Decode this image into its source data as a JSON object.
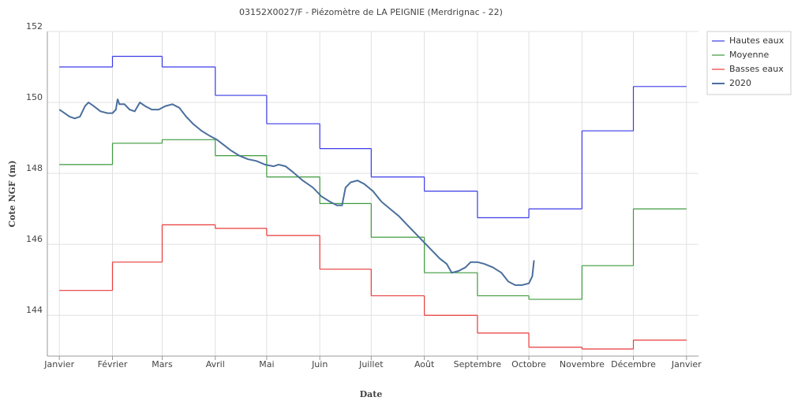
{
  "chart_data": {
    "type": "line",
    "title": "03152X0027/F - Piézomètre de LA PEIGNIE (Merdrignac - 22)",
    "x_label": "Date",
    "y_label": "Cote NGF (m)",
    "xlim": [
      -7,
      373
    ],
    "xticks": [
      {
        "value": 0,
        "label": "Janvier"
      },
      {
        "value": 31,
        "label": "Février"
      },
      {
        "value": 60,
        "label": "Mars"
      },
      {
        "value": 91,
        "label": "Avril"
      },
      {
        "value": 121,
        "label": "Mai"
      },
      {
        "value": 152,
        "label": "Juin"
      },
      {
        "value": 182,
        "label": "Juillet"
      },
      {
        "value": 213,
        "label": "Août"
      },
      {
        "value": 244,
        "label": "Septembre"
      },
      {
        "value": 274,
        "label": "Octobre"
      },
      {
        "value": 305,
        "label": "Novembre"
      },
      {
        "value": 335,
        "label": "Décembre"
      },
      {
        "value": 366,
        "label": "Janvier"
      }
    ],
    "ylim": [
      142.85,
      152
    ],
    "yticks": [
      144,
      146,
      148,
      150,
      152
    ],
    "grid": true,
    "legend": "right",
    "step_series": [
      {
        "name": "Hautes eaux",
        "color": "#3a3ae8",
        "values": [
          151.0,
          151.3,
          151.0,
          150.2,
          149.4,
          148.7,
          147.9,
          147.5,
          146.75,
          147.0,
          149.2,
          150.45
        ]
      },
      {
        "name": "Moyenne",
        "color": "#3c9a3c",
        "values": [
          148.25,
          148.85,
          148.95,
          148.5,
          147.9,
          147.15,
          146.2,
          145.2,
          144.55,
          144.45,
          145.4,
          147.0
        ]
      },
      {
        "name": "Basses eaux",
        "color": "#e83a3a",
        "values": [
          144.7,
          145.5,
          146.55,
          146.45,
          146.25,
          145.3,
          144.55,
          144.0,
          143.5,
          143.1,
          143.05,
          143.3
        ]
      }
    ],
    "series": [
      {
        "name": "2020",
        "color": "#4a6f9c",
        "x": [
          0,
          3,
          6,
          9,
          12,
          15,
          17,
          20,
          24,
          28,
          31,
          33,
          34,
          35,
          38,
          41,
          44,
          47,
          50,
          54,
          58,
          60,
          62,
          66,
          70,
          74,
          78,
          83,
          88,
          92,
          96,
          100,
          105,
          110,
          115,
          120,
          125,
          128,
          132,
          136,
          142,
          148,
          153,
          158,
          162,
          165,
          167,
          170,
          174,
          178,
          183,
          188,
          193,
          198,
          203,
          208,
          213,
          218,
          222,
          226,
          229,
          233,
          237,
          240,
          244,
          248,
          253,
          258,
          262,
          266,
          270,
          274,
          276,
          277
        ],
        "values": [
          149.8,
          149.7,
          149.6,
          149.55,
          149.6,
          149.9,
          150.0,
          149.9,
          149.75,
          149.7,
          149.7,
          149.8,
          150.1,
          149.95,
          149.95,
          149.8,
          149.75,
          150.0,
          149.9,
          149.8,
          149.8,
          149.85,
          149.9,
          149.95,
          149.85,
          149.6,
          149.4,
          149.2,
          149.05,
          148.95,
          148.8,
          148.65,
          148.5,
          148.4,
          148.35,
          148.25,
          148.2,
          148.25,
          148.2,
          148.05,
          147.8,
          147.6,
          147.35,
          147.2,
          147.1,
          147.1,
          147.6,
          147.75,
          147.8,
          147.7,
          147.5,
          147.2,
          147.0,
          146.8,
          146.55,
          146.3,
          146.05,
          145.8,
          145.6,
          145.45,
          145.2,
          145.25,
          145.35,
          145.5,
          145.5,
          145.45,
          145.35,
          145.2,
          144.95,
          144.85,
          144.85,
          144.9,
          145.1,
          145.55
        ]
      }
    ]
  }
}
